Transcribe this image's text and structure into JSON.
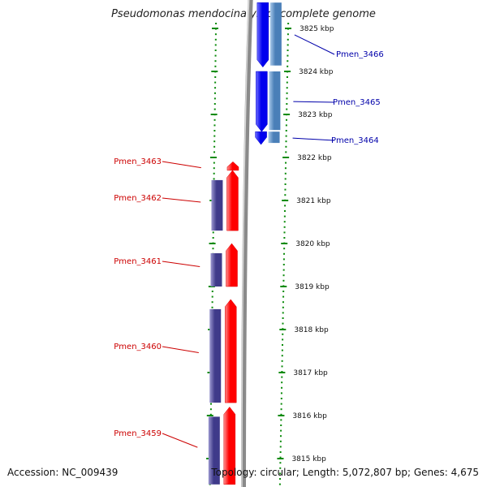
{
  "title": "Pseudomonas mendocina ymp, complete genome",
  "footer": {
    "accession": "Accession: NC_009439",
    "summary": "Topology: circular; Length: 5,072,807 bp; Genes: 4,675"
  },
  "ruler": {
    "unit": "kbp",
    "ticks": [
      {
        "kbp": 3825,
        "label": "3825 kbp"
      },
      {
        "kbp": 3824,
        "label": "3824 kbp"
      },
      {
        "kbp": 3823,
        "label": "3823 kbp"
      },
      {
        "kbp": 3822,
        "label": "3822 kbp"
      },
      {
        "kbp": 3821,
        "label": "3821 kbp"
      },
      {
        "kbp": 3820,
        "label": "3820 kbp"
      },
      {
        "kbp": 3819,
        "label": "3819 kbp"
      },
      {
        "kbp": 3818,
        "label": "3818 kbp"
      },
      {
        "kbp": 3817,
        "label": "3817 kbp"
      },
      {
        "kbp": 3816,
        "label": "3816 kbp"
      },
      {
        "kbp": 3815,
        "label": "3815 kbp"
      }
    ]
  },
  "colors": {
    "reverse_cds": "#ff0000",
    "forward_cds": "#0000ee",
    "reverse_orf": "#3f3a8a",
    "forward_orf": "#4a7fb8",
    "label_reverse": "#cc0000",
    "label_forward": "#0000aa",
    "backbone": "#8a8a8a",
    "tick": "#0a8a0a"
  },
  "genes": [
    {
      "name": "Pmen_3466",
      "strand": "+",
      "start_kbp": 3825.6,
      "end_kbp": 3824.1
    },
    {
      "name": "Pmen_3465",
      "strand": "+",
      "start_kbp": 3824.0,
      "end_kbp": 3822.6
    },
    {
      "name": "Pmen_3464",
      "strand": "+",
      "start_kbp": 3822.6,
      "end_kbp": 3822.3
    },
    {
      "name": "Pmen_3463",
      "strand": "-",
      "start_kbp": 3821.9,
      "end_kbp": 3821.7
    },
    {
      "name": "Pmen_3462",
      "strand": "-",
      "start_kbp": 3821.7,
      "end_kbp": 3820.3
    },
    {
      "name": "Pmen_3461",
      "strand": "-",
      "start_kbp": 3820.0,
      "end_kbp": 3819.0
    },
    {
      "name": "Pmen_3460",
      "strand": "-",
      "start_kbp": 3818.7,
      "end_kbp": 3816.3
    },
    {
      "name": "Pmen_3459",
      "strand": "-",
      "start_kbp": 3816.2,
      "end_kbp": 3814.4
    }
  ]
}
